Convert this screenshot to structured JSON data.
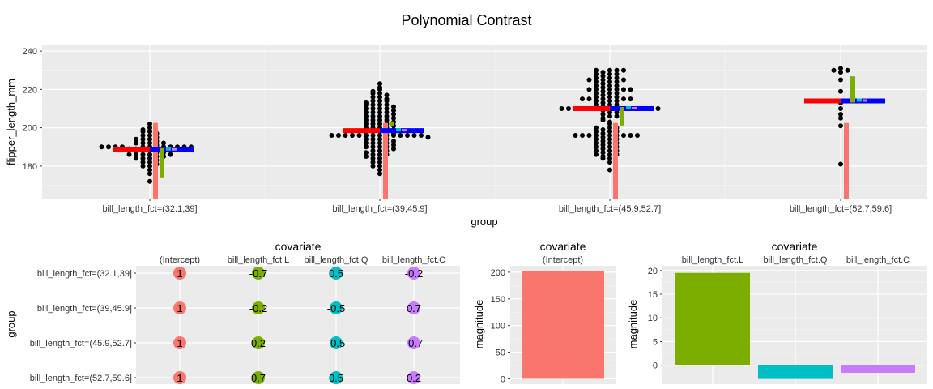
{
  "chart_data": [
    {
      "type": "scatter",
      "title": "Polynomial Contrast",
      "xlabel": "group",
      "ylabel": "flipper_length_mm",
      "ylim": [
        163,
        243
      ],
      "yticks": [
        180,
        200,
        220,
        240
      ],
      "categories": [
        "bill_length_fct=(32.1,39]",
        "bill_length_fct=(39,45.9]",
        "bill_length_fct=(45.9,52.7]",
        "bill_length_fct=(52.7,59.6]"
      ],
      "group_means": [
        188.5,
        198.5,
        210,
        214
      ],
      "intercept": 202.5,
      "contrast_colors": {
        "intercept": "#F8766D",
        "L": "#7CAE00",
        "Q": "#00BFC4",
        "C": "#C77CFF",
        "mean": "#FF0000",
        "fit": "#0000FF"
      },
      "points": [
        [
          190,
          180,
          178,
          176,
          172,
          182,
          184,
          186,
          188,
          190,
          192,
          194,
          196,
          198,
          200,
          202,
          180,
          182,
          184,
          186,
          188,
          190,
          192,
          194,
          196,
          198,
          181,
          183,
          185,
          187,
          189,
          191,
          193,
          195,
          197,
          199,
          186,
          188,
          190,
          185,
          187,
          189,
          184,
          186,
          188,
          190,
          192,
          194,
          186,
          188,
          190,
          192,
          190,
          190,
          190,
          190,
          190,
          190
        ],
        [
          176,
          178,
          180,
          182,
          184,
          186,
          188,
          190,
          192,
          194,
          196,
          198,
          200,
          202,
          204,
          206,
          208,
          210,
          212,
          214,
          216,
          218,
          220,
          223,
          180,
          182,
          184,
          186,
          188,
          190,
          192,
          194,
          196,
          198,
          200,
          202,
          204,
          206,
          208,
          210,
          212,
          214,
          216,
          218,
          186,
          188,
          190,
          192,
          194,
          196,
          198,
          200,
          202,
          204,
          206,
          208,
          210,
          212,
          214,
          190,
          192,
          194,
          196,
          198,
          200,
          202,
          204,
          206,
          208,
          210,
          212,
          196,
          196,
          196,
          196,
          196,
          196,
          196,
          196,
          196,
          196,
          185,
          187,
          189,
          191,
          193,
          195,
          197,
          199,
          201,
          203,
          205,
          207,
          209,
          211,
          213,
          215,
          217,
          219,
          221
        ],
        [
          178,
          182,
          184,
          186,
          188,
          190,
          192,
          194,
          196,
          198,
          200,
          202,
          206,
          208,
          210,
          212,
          214,
          216,
          218,
          220,
          222,
          224,
          226,
          228,
          230,
          185,
          187,
          189,
          191,
          193,
          195,
          197,
          199,
          203,
          205,
          207,
          209,
          211,
          213,
          215,
          217,
          219,
          221,
          223,
          225,
          227,
          229,
          186,
          188,
          190,
          192,
          194,
          196,
          198,
          200,
          204,
          206,
          208,
          210,
          212,
          214,
          216,
          218,
          220,
          222,
          224,
          226,
          228,
          230,
          184,
          186,
          188,
          190,
          192,
          194,
          196,
          198,
          200,
          210,
          212,
          214,
          216,
          218,
          220,
          222,
          224,
          226,
          228,
          210,
          210,
          210,
          210,
          210,
          210,
          210,
          210,
          210,
          210,
          196,
          196,
          196,
          196,
          196,
          196,
          210,
          215,
          215,
          215,
          215,
          220,
          220,
          220,
          225,
          225,
          230,
          230
        ],
        [
          181,
          201,
          205,
          207,
          210,
          213,
          219,
          225,
          229,
          230,
          230,
          231
        ]
      ]
    },
    {
      "type": "heatmap",
      "xlabel": "covariate",
      "ylabel": "group",
      "columns": [
        "(Intercept)",
        "bill_length_fct.L",
        "bill_length_fct.Q",
        "bill_length_fct.C"
      ],
      "rows": [
        "bill_length_fct=(32.1,39]",
        "bill_length_fct=(39,45.9]",
        "bill_length_fct=(45.9,52.7]",
        "bill_length_fct=(52.7,59.6]"
      ],
      "values": [
        [
          "1",
          "-0.7",
          "0.5",
          "-0.2"
        ],
        [
          "1",
          "-0.2",
          "-0.5",
          "0.7"
        ],
        [
          "1",
          "0.2",
          "-0.5",
          "-0.7"
        ],
        [
          "1",
          "0.7",
          "0.5",
          "0.2"
        ]
      ]
    },
    {
      "type": "bar",
      "xlabel": "covariate",
      "ylabel": "magnitude",
      "categories": [
        "(Intercept)"
      ],
      "values": [
        202.5
      ],
      "ylim": [
        -10,
        212
      ],
      "yticks": [
        0,
        50,
        100,
        150,
        200
      ]
    },
    {
      "type": "bar",
      "xlabel": "covariate",
      "ylabel": "magnitude",
      "categories": [
        "bill_length_fct.L",
        "bill_length_fct.Q",
        "bill_length_fct.C"
      ],
      "values": [
        19.5,
        -2.9,
        -1.6
      ],
      "ylim": [
        -4,
        21
      ],
      "yticks": [
        0,
        5,
        10,
        15,
        20
      ]
    }
  ]
}
